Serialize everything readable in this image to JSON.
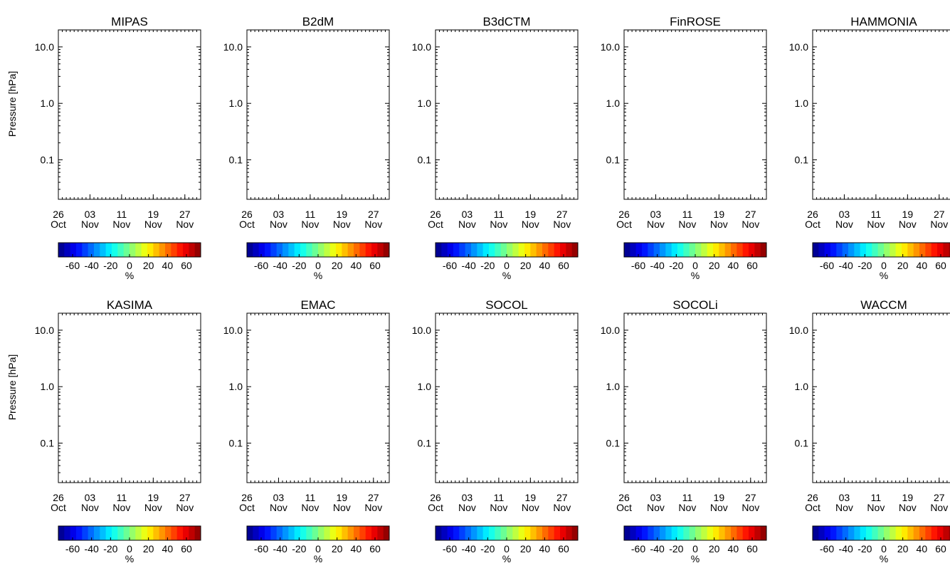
{
  "chart_data": {
    "type": "heatmap",
    "ylabel": "Pressure [hPa]",
    "y_ticks": [
      "0.1",
      "1.0",
      "10.0"
    ],
    "y_tick_values": [
      0.1,
      1.0,
      10.0
    ],
    "y_scale": "log",
    "ylim_hpa": [
      20,
      0.02
    ],
    "x_ticks": [
      {
        "day": "26",
        "month": "Oct"
      },
      {
        "day": "03",
        "month": "Nov"
      },
      {
        "day": "11",
        "month": "Nov"
      },
      {
        "day": "19",
        "month": "Nov"
      },
      {
        "day": "27",
        "month": "Nov"
      }
    ],
    "x_tick_dates": [
      "2003-10-26",
      "2003-11-03",
      "2003-11-11",
      "2003-11-19",
      "2003-11-27"
    ],
    "xlim": [
      "2003-10-26",
      "2003-12-01"
    ],
    "colorbar": {
      "label": "%",
      "ticks": [
        "-60",
        "-40",
        "-20",
        "0",
        "20",
        "40",
        "60"
      ],
      "range": [
        -75,
        75
      ],
      "colormap": "jet"
    },
    "panels": [
      {
        "title": "MIPAS",
        "top_hpa": 0.02,
        "data_end": "2003-12-01",
        "features": [
          {
            "p": 0.04,
            "v": 65,
            "w": 0.45
          },
          {
            "p": 0.12,
            "v": 60,
            "w": 0.35
          },
          {
            "p": 0.5,
            "v": 15,
            "w": 0.2
          },
          {
            "p": 1.8,
            "v": 55,
            "w": 0.16
          },
          {
            "p": 6,
            "v": -15,
            "w": 0.25
          }
        ]
      },
      {
        "title": "B2dM",
        "top_hpa": 0.02,
        "data_end": "2003-12-01",
        "features": [
          {
            "p": 0.08,
            "v": -30,
            "w": 0.4
          },
          {
            "p": 3,
            "v": 8,
            "w": 0.3
          }
        ]
      },
      {
        "title": "B3dCTM",
        "top_hpa": 0.2,
        "data_end": "2003-12-01",
        "features": [
          {
            "p": 0.6,
            "v": 35,
            "w": 0.2
          },
          {
            "p": 1.2,
            "v": 40,
            "w": 0.15
          },
          {
            "p": 5,
            "v": -35,
            "w": 0.2
          }
        ]
      },
      {
        "title": "FinROSE",
        "top_hpa": 0.11,
        "data_end": "2003-12-01",
        "features": [
          {
            "p": 1.8,
            "v": 30,
            "w": 0.18
          },
          {
            "p": 7,
            "v": -10,
            "w": 0.25
          }
        ]
      },
      {
        "title": "HAMMONIA",
        "top_hpa": 0.02,
        "data_end": "2003-12-01",
        "features": [
          {
            "p": 0.1,
            "v": -10,
            "w": 0.5
          },
          {
            "p": 3,
            "v": 5,
            "w": 0.3
          }
        ]
      },
      {
        "title": "KASIMA",
        "top_hpa": 0.02,
        "data_end": "2003-12-01",
        "features": [
          {
            "p": 0.05,
            "v": -45,
            "w": 0.5
          },
          {
            "p": 0.4,
            "v": -10,
            "w": 0.3
          },
          {
            "p": 5,
            "v": -55,
            "w": 0.25
          }
        ]
      },
      {
        "title": "EMAC",
        "top_hpa": 0.02,
        "data_end": "2003-12-01",
        "features": [
          {
            "p": 0.06,
            "v": 60,
            "w": 0.35
          },
          {
            "p": 0.25,
            "v": 30,
            "w": 0.2
          },
          {
            "p": 3.5,
            "v": 10,
            "w": 0.2
          },
          {
            "p": 7,
            "v": -20,
            "w": 0.2
          }
        ]
      },
      {
        "title": "SOCOL",
        "top_hpa": 0.02,
        "data_end": "2003-11-27",
        "features": [
          {
            "p": 0.3,
            "v": -15,
            "w": 0.4
          },
          {
            "p": 4.5,
            "v": 32,
            "w": 0.14
          }
        ]
      },
      {
        "title": "SOCOLi",
        "top_hpa": 0.02,
        "data_end": "2003-11-27",
        "features": [
          {
            "p": 0.4,
            "v": -45,
            "w": 0.3
          },
          {
            "p": 5,
            "v": -50,
            "w": 0.25
          },
          {
            "p": 0.03,
            "v": 10,
            "w": 0.2
          }
        ]
      },
      {
        "title": "WACCM",
        "top_hpa": 0.02,
        "data_end": "2003-12-01",
        "features": [
          {
            "p": 0.05,
            "v": -35,
            "w": 0.4
          },
          {
            "p": 2,
            "v": 60,
            "w": 0.14
          },
          {
            "p": 6,
            "v": -40,
            "w": 0.2
          }
        ]
      }
    ]
  }
}
